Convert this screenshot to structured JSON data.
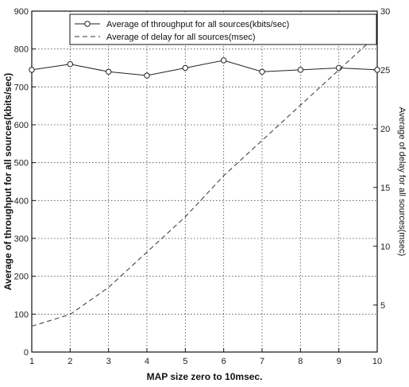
{
  "chart_data": {
    "type": "line",
    "x": [
      1,
      2,
      3,
      4,
      5,
      6,
      7,
      8,
      9,
      10
    ],
    "xlabel": "MAP size zero to 10msec.",
    "ylabel_left": "Average of throughput for all sources(kbits/sec)",
    "ylabel_right": "Average of delay for all sources(msec)",
    "xlim": [
      1,
      10
    ],
    "ylim_left": [
      0,
      900
    ],
    "ylim_right": [
      1,
      30
    ],
    "xticks": [
      "1",
      "2",
      "3",
      "4",
      "5",
      "6",
      "7",
      "8",
      "9",
      "10"
    ],
    "yticks_left": [
      "0",
      "100",
      "200",
      "300",
      "400",
      "500",
      "600",
      "700",
      "800",
      "900"
    ],
    "yticks_right": [
      "5",
      "10",
      "15",
      "20",
      "25",
      "30"
    ],
    "grid": true,
    "legend_position": "top-right",
    "series": [
      {
        "name": "Average of throughput for all sources(kbits/sec)",
        "axis": "left",
        "style": "solid-circle-markers",
        "values": [
          745,
          760,
          740,
          730,
          750,
          770,
          740,
          745,
          750,
          745
        ]
      },
      {
        "name": "Average of delay for all sources(msec)",
        "axis": "right",
        "style": "dashed",
        "values": [
          3.2,
          4.2,
          6.5,
          9.5,
          12.5,
          16,
          19,
          22,
          25,
          28
        ]
      }
    ]
  }
}
